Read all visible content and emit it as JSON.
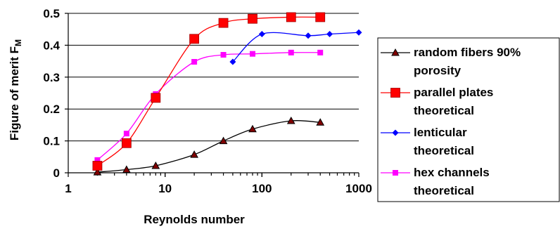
{
  "chart_data": {
    "type": "line",
    "xscale": "log",
    "xlim": [
      1,
      1000
    ],
    "ylim": [
      0,
      0.5
    ],
    "xticks": [
      1,
      10,
      100,
      1000
    ],
    "xtick_labels": [
      "1",
      "10",
      "100",
      "1000"
    ],
    "yticks": [
      0,
      0.1,
      0.2,
      0.3,
      0.4,
      0.5
    ],
    "ytick_labels": [
      "0",
      "0.1",
      "0.2",
      "0.3",
      "0.4",
      "0.5"
    ],
    "xlabel": "Reynolds number",
    "ylabel_main": "Figure of merit F",
    "ylabel_sub": "M",
    "grid": "horizontal",
    "legend_position": "right",
    "series": [
      {
        "name": "random fibers 90% porosity",
        "legend_lines": [
          "random fibers 90%",
          "porosity"
        ],
        "color": "#000000",
        "marker_color": "#800000",
        "marker": "triangle",
        "x": [
          2,
          4,
          8,
          20,
          40,
          80,
          200,
          400
        ],
        "y": [
          0.002,
          0.01,
          0.022,
          0.057,
          0.1,
          0.137,
          0.163,
          0.158
        ]
      },
      {
        "name": "parallel plates theoretical",
        "legend_lines": [
          "parallel plates",
          "theoretical"
        ],
        "color": "#ff0000",
        "marker_color": "#ff0000",
        "marker": "square-large",
        "x": [
          2,
          4,
          8,
          20,
          40,
          80,
          200,
          400
        ],
        "y": [
          0.022,
          0.093,
          0.235,
          0.42,
          0.47,
          0.483,
          0.488,
          0.488
        ]
      },
      {
        "name": "lenticular theoretical",
        "legend_lines": [
          "lenticular",
          "theoretical"
        ],
        "color": "#0000ff",
        "marker_color": "#0000ff",
        "marker": "diamond",
        "x": [
          50,
          100,
          300,
          500,
          1000
        ],
        "y": [
          0.348,
          0.435,
          0.43,
          0.435,
          0.44
        ]
      },
      {
        "name": "hex channels theoretical",
        "legend_lines": [
          "hex channels",
          "theoretical"
        ],
        "color": "#ff00ff",
        "marker_color": "#ff00ff",
        "marker": "square-small",
        "x": [
          2,
          4,
          8,
          20,
          40,
          80,
          200,
          400
        ],
        "y": [
          0.04,
          0.123,
          0.247,
          0.348,
          0.37,
          0.373,
          0.377,
          0.377
        ]
      }
    ]
  }
}
